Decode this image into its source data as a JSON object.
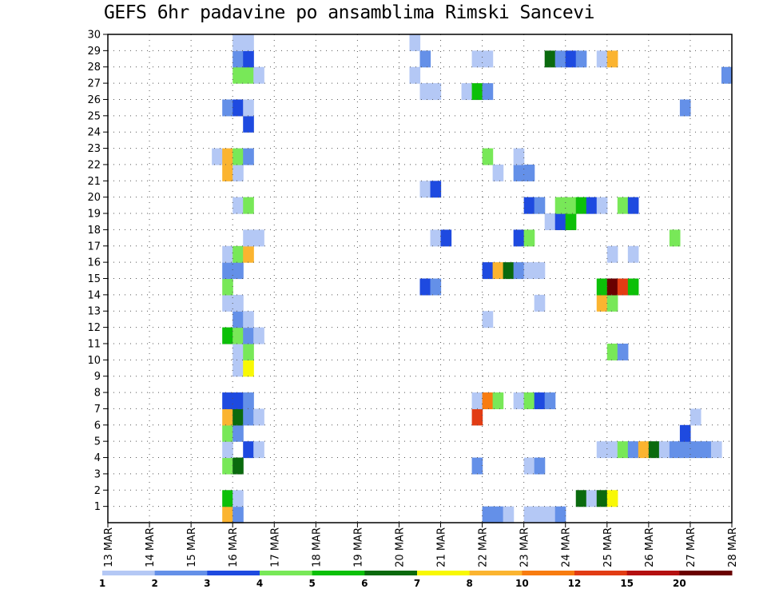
{
  "title": "GEFS 6hr padavine po ansamblima Rimski Sancevi",
  "chart_data": {
    "type": "heatmap",
    "title": "GEFS 6hr padavine po ansamblima Rimski Sancevi",
    "x_ticks": [
      "13 MAR",
      "14 MAR",
      "15 MAR",
      "16 MAR",
      "17 MAR",
      "18 MAR",
      "19 MAR",
      "20 MAR",
      "21 MAR",
      "22 MAR",
      "23 MAR",
      "24 MAR",
      "25 MAR",
      "26 MAR",
      "27 MAR",
      "28 MAR"
    ],
    "y_ticks": [
      1,
      2,
      3,
      4,
      5,
      6,
      7,
      8,
      9,
      10,
      11,
      12,
      13,
      14,
      15,
      16,
      17,
      18,
      19,
      20,
      21,
      22,
      23,
      24,
      25,
      26,
      27,
      28,
      29,
      30
    ],
    "x_range_days": [
      13,
      28
    ],
    "y_range": [
      0,
      30
    ],
    "time_step_hours": 6,
    "grid": "dotted",
    "legend": {
      "position": "bottom",
      "levels": [
        "1",
        "2",
        "3",
        "4",
        "5",
        "6",
        "7",
        "8",
        "10",
        "12",
        "15",
        "20"
      ],
      "colors": [
        "#b4c8f5",
        "#6490e8",
        "#1e4ae0",
        "#78e858",
        "#0cc008",
        "#0a6a0e",
        "#f8f805",
        "#fbb430",
        "#f87c10",
        "#e23c14",
        "#b41010",
        "#6a0000"
      ]
    },
    "cells": [
      [
        15.75,
        0,
        "#fbb430"
      ],
      [
        16.0,
        0,
        "#6490e8"
      ],
      [
        22.0,
        0,
        "#6490e8"
      ],
      [
        22.25,
        0,
        "#6490e8"
      ],
      [
        22.5,
        0,
        "#b4c8f5"
      ],
      [
        23.0,
        0,
        "#b4c8f5"
      ],
      [
        23.25,
        0,
        "#b4c8f5"
      ],
      [
        23.5,
        0,
        "#b4c8f5"
      ],
      [
        23.75,
        0,
        "#6490e8"
      ],
      [
        15.75,
        1,
        "#0cc008"
      ],
      [
        16.0,
        1,
        "#b4c8f5"
      ],
      [
        24.25,
        1,
        "#0a6a0e"
      ],
      [
        24.5,
        1,
        "#b4c8f5"
      ],
      [
        24.75,
        1,
        "#0a6a0e"
      ],
      [
        25.0,
        1,
        "#f8f805"
      ],
      [
        15.75,
        3,
        "#78e858"
      ],
      [
        16.0,
        3,
        "#0a6a0e"
      ],
      [
        21.75,
        3,
        "#6490e8"
      ],
      [
        23.0,
        3,
        "#b4c8f5"
      ],
      [
        23.25,
        3,
        "#6490e8"
      ],
      [
        15.75,
        4,
        "#b4c8f5"
      ],
      [
        16.25,
        4,
        "#1e4ae0"
      ],
      [
        16.5,
        4,
        "#b4c8f5"
      ],
      [
        24.75,
        4,
        "#b4c8f5"
      ],
      [
        25.0,
        4,
        "#b4c8f5"
      ],
      [
        25.25,
        4,
        "#78e858"
      ],
      [
        25.5,
        4,
        "#6490e8"
      ],
      [
        25.75,
        4,
        "#fbb430"
      ],
      [
        26.0,
        4,
        "#0a6a0e"
      ],
      [
        26.25,
        4,
        "#b4c8f5"
      ],
      [
        26.5,
        4,
        "#6490e8"
      ],
      [
        26.75,
        4,
        "#6490e8"
      ],
      [
        27.0,
        4,
        "#6490e8"
      ],
      [
        27.25,
        4,
        "#6490e8"
      ],
      [
        27.5,
        4,
        "#b4c8f5"
      ],
      [
        15.75,
        5,
        "#78e858"
      ],
      [
        16.0,
        5,
        "#6490e8"
      ],
      [
        26.75,
        5,
        "#1e4ae0"
      ],
      [
        15.75,
        6,
        "#fbb430"
      ],
      [
        16.0,
        6,
        "#0a6a0e"
      ],
      [
        16.25,
        6,
        "#6490e8"
      ],
      [
        16.5,
        6,
        "#b4c8f5"
      ],
      [
        21.75,
        6,
        "#e23c14"
      ],
      [
        27.0,
        6,
        "#b4c8f5"
      ],
      [
        15.75,
        7,
        "#1e4ae0"
      ],
      [
        16.0,
        7,
        "#1e4ae0"
      ],
      [
        16.25,
        7,
        "#6490e8"
      ],
      [
        21.75,
        7,
        "#b4c8f5"
      ],
      [
        22.0,
        7,
        "#f87c10"
      ],
      [
        22.25,
        7,
        "#78e858"
      ],
      [
        22.75,
        7,
        "#b4c8f5"
      ],
      [
        23.0,
        7,
        "#78e858"
      ],
      [
        23.25,
        7,
        "#1e4ae0"
      ],
      [
        23.5,
        7,
        "#6490e8"
      ],
      [
        16.0,
        9,
        "#b4c8f5"
      ],
      [
        16.25,
        9,
        "#f8f805"
      ],
      [
        16.0,
        10,
        "#b4c8f5"
      ],
      [
        16.25,
        10,
        "#78e858"
      ],
      [
        25.0,
        10,
        "#78e858"
      ],
      [
        25.25,
        10,
        "#6490e8"
      ],
      [
        15.75,
        11,
        "#0cc008"
      ],
      [
        16.0,
        11,
        "#78e858"
      ],
      [
        16.25,
        11,
        "#6490e8"
      ],
      [
        16.5,
        11,
        "#b4c8f5"
      ],
      [
        16.0,
        12,
        "#6490e8"
      ],
      [
        16.25,
        12,
        "#b4c8f5"
      ],
      [
        22.0,
        12,
        "#b4c8f5"
      ],
      [
        15.75,
        13,
        "#b4c8f5"
      ],
      [
        16.0,
        13,
        "#b4c8f5"
      ],
      [
        23.25,
        13,
        "#b4c8f5"
      ],
      [
        24.75,
        13,
        "#fbb430"
      ],
      [
        25.0,
        13,
        "#78e858"
      ],
      [
        15.75,
        14,
        "#78e858"
      ],
      [
        20.5,
        14,
        "#1e4ae0"
      ],
      [
        20.75,
        14,
        "#6490e8"
      ],
      [
        24.75,
        14,
        "#0cc008"
      ],
      [
        25.0,
        14,
        "#6a0000"
      ],
      [
        25.25,
        14,
        "#e23c14"
      ],
      [
        25.5,
        14,
        "#0cc008"
      ],
      [
        15.75,
        15,
        "#6490e8"
      ],
      [
        16.0,
        15,
        "#6490e8"
      ],
      [
        22.0,
        15,
        "#1e4ae0"
      ],
      [
        22.25,
        15,
        "#fbb430"
      ],
      [
        22.5,
        15,
        "#0a6a0e"
      ],
      [
        22.75,
        15,
        "#6490e8"
      ],
      [
        23.0,
        15,
        "#b4c8f5"
      ],
      [
        23.25,
        15,
        "#b4c8f5"
      ],
      [
        15.75,
        16,
        "#b4c8f5"
      ],
      [
        16.0,
        16,
        "#78e858"
      ],
      [
        16.25,
        16,
        "#fbb430"
      ],
      [
        25.0,
        16,
        "#b4c8f5"
      ],
      [
        25.5,
        16,
        "#b4c8f5"
      ],
      [
        16.25,
        17,
        "#b4c8f5"
      ],
      [
        16.5,
        17,
        "#b4c8f5"
      ],
      [
        20.75,
        17,
        "#b4c8f5"
      ],
      [
        21.0,
        17,
        "#1e4ae0"
      ],
      [
        22.75,
        17,
        "#1e4ae0"
      ],
      [
        23.0,
        17,
        "#78e858"
      ],
      [
        26.5,
        17,
        "#78e858"
      ],
      [
        23.5,
        18,
        "#b4c8f5"
      ],
      [
        23.75,
        18,
        "#1e4ae0"
      ],
      [
        24.0,
        18,
        "#0cc008"
      ],
      [
        16.0,
        19,
        "#b4c8f5"
      ],
      [
        16.25,
        19,
        "#78e858"
      ],
      [
        23.0,
        19,
        "#1e4ae0"
      ],
      [
        23.25,
        19,
        "#6490e8"
      ],
      [
        23.75,
        19,
        "#78e858"
      ],
      [
        24.0,
        19,
        "#78e858"
      ],
      [
        24.25,
        19,
        "#0cc008"
      ],
      [
        24.5,
        19,
        "#1e4ae0"
      ],
      [
        24.75,
        19,
        "#b4c8f5"
      ],
      [
        25.25,
        19,
        "#78e858"
      ],
      [
        25.5,
        19,
        "#1e4ae0"
      ],
      [
        20.5,
        20,
        "#b4c8f5"
      ],
      [
        20.75,
        20,
        "#1e4ae0"
      ],
      [
        15.75,
        21,
        "#fbb430"
      ],
      [
        16.0,
        21,
        "#b4c8f5"
      ],
      [
        22.25,
        21,
        "#b4c8f5"
      ],
      [
        22.75,
        21,
        "#6490e8"
      ],
      [
        23.0,
        21,
        "#6490e8"
      ],
      [
        15.5,
        22,
        "#b4c8f5"
      ],
      [
        15.75,
        22,
        "#fbb430"
      ],
      [
        16.0,
        22,
        "#78e858"
      ],
      [
        16.25,
        22,
        "#6490e8"
      ],
      [
        22.0,
        22,
        "#78e858"
      ],
      [
        22.75,
        22,
        "#b4c8f5"
      ],
      [
        16.25,
        24,
        "#1e4ae0"
      ],
      [
        15.75,
        25,
        "#6490e8"
      ],
      [
        16.0,
        25,
        "#1e4ae0"
      ],
      [
        16.25,
        25,
        "#b4c8f5"
      ],
      [
        26.75,
        25,
        "#6490e8"
      ],
      [
        20.5,
        26,
        "#b4c8f5"
      ],
      [
        20.75,
        26,
        "#b4c8f5"
      ],
      [
        21.5,
        26,
        "#b4c8f5"
      ],
      [
        21.75,
        26,
        "#0cc008"
      ],
      [
        22.0,
        26,
        "#6490e8"
      ],
      [
        16.0,
        27,
        "#78e858"
      ],
      [
        16.25,
        27,
        "#78e858"
      ],
      [
        16.5,
        27,
        "#b4c8f5"
      ],
      [
        20.25,
        27,
        "#b4c8f5"
      ],
      [
        27.75,
        27,
        "#6490e8"
      ],
      [
        16.0,
        28,
        "#6490e8"
      ],
      [
        16.25,
        28,
        "#1e4ae0"
      ],
      [
        20.5,
        28,
        "#6490e8"
      ],
      [
        21.75,
        28,
        "#b4c8f5"
      ],
      [
        22.0,
        28,
        "#b4c8f5"
      ],
      [
        23.5,
        28,
        "#0a6a0e"
      ],
      [
        23.75,
        28,
        "#6490e8"
      ],
      [
        24.0,
        28,
        "#1e4ae0"
      ],
      [
        24.25,
        28,
        "#6490e8"
      ],
      [
        24.75,
        28,
        "#b4c8f5"
      ],
      [
        25.0,
        28,
        "#fbb430"
      ],
      [
        16.0,
        29,
        "#b4c8f5"
      ],
      [
        16.25,
        29,
        "#b4c8f5"
      ],
      [
        20.25,
        29,
        "#b4c8f5"
      ]
    ]
  }
}
